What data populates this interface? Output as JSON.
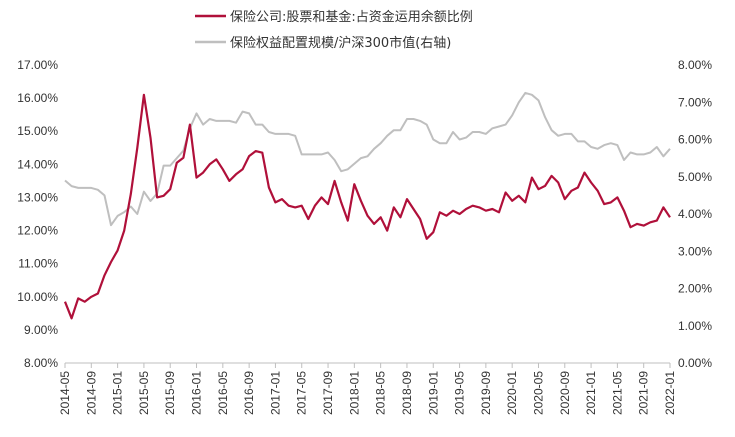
{
  "chart_data": {
    "type": "line",
    "legend": {
      "placement": "top-center",
      "entries": [
        {
          "name": "保险公司:股票和基金:占资金运用余额比例",
          "color": "#b0103a",
          "axis": "left"
        },
        {
          "name": "保险权益配置规模/沪深300市值(右轴)",
          "color": "#bfbfbf",
          "axis": "right"
        }
      ]
    },
    "y_left": {
      "min": 8,
      "max": 17,
      "ticks": [
        "8.00%",
        "9.00%",
        "10.00%",
        "11.00%",
        "12.00%",
        "13.00%",
        "14.00%",
        "15.00%",
        "16.00%",
        "17.00%"
      ]
    },
    "y_right": {
      "min": 0,
      "max": 8,
      "ticks": [
        "0.00%",
        "1.00%",
        "2.00%",
        "3.00%",
        "4.00%",
        "5.00%",
        "6.00%",
        "7.00%",
        "8.00%"
      ]
    },
    "x_ticks": [
      "2014-05",
      "2014-09",
      "2015-01",
      "2015-05",
      "2015-09",
      "2016-01",
      "2016-05",
      "2016-09",
      "2017-01",
      "2017-05",
      "2017-09",
      "2018-01",
      "2018-05",
      "2018-09",
      "2019-01",
      "2019-05",
      "2019-09",
      "2020-01",
      "2020-05",
      "2020-09",
      "2021-01",
      "2021-05",
      "2021-09",
      "2022-01"
    ],
    "grid": false,
    "series": [
      {
        "name": "保险公司:股票和基金:占资金运用余额比例",
        "color": "#b0103a",
        "axis": "left",
        "values": [
          9.85,
          9.35,
          9.95,
          9.85,
          10.0,
          10.1,
          10.65,
          11.05,
          11.4,
          12.0,
          13.1,
          14.5,
          16.1,
          14.8,
          13.0,
          13.05,
          13.25,
          14.05,
          14.2,
          15.2,
          13.6,
          13.75,
          14.0,
          14.15,
          13.85,
          13.5,
          13.7,
          13.85,
          14.25,
          14.4,
          14.35,
          13.3,
          12.85,
          12.95,
          12.75,
          12.7,
          12.75,
          12.35,
          12.75,
          13.0,
          12.8,
          13.5,
          12.85,
          12.3,
          13.4,
          12.9,
          12.45,
          12.2,
          12.4,
          12.0,
          12.7,
          12.4,
          12.95,
          12.65,
          12.35,
          11.75,
          11.95,
          12.55,
          12.45,
          12.6,
          12.5,
          12.65,
          12.75,
          12.7,
          12.6,
          12.65,
          12.55,
          13.15,
          12.9,
          13.05,
          12.85,
          13.6,
          13.25,
          13.35,
          13.65,
          13.45,
          12.95,
          13.2,
          13.3,
          13.75,
          13.45,
          13.2,
          12.8,
          12.85,
          13.0,
          12.6,
          12.1,
          12.2,
          12.15,
          12.25,
          12.3,
          12.7,
          12.4
        ]
      },
      {
        "name": "保险权益配置规模/沪深300市值(右轴)",
        "color": "#bfbfbf",
        "axis": "right",
        "values": [
          4.9,
          4.75,
          4.7,
          4.7,
          4.7,
          4.65,
          4.5,
          3.7,
          3.95,
          4.05,
          4.2,
          4.0,
          4.6,
          4.35,
          4.55,
          5.3,
          5.3,
          5.5,
          5.7,
          6.3,
          6.7,
          6.4,
          6.55,
          6.5,
          6.5,
          6.5,
          6.45,
          6.75,
          6.7,
          6.4,
          6.4,
          6.2,
          6.15,
          6.15,
          6.15,
          6.1,
          5.6,
          5.6,
          5.6,
          5.6,
          5.65,
          5.45,
          5.15,
          5.2,
          5.35,
          5.5,
          5.55,
          5.75,
          5.9,
          6.1,
          6.25,
          6.25,
          6.55,
          6.55,
          6.5,
          6.4,
          6.0,
          5.9,
          5.9,
          6.2,
          6.0,
          6.05,
          6.2,
          6.2,
          6.15,
          6.3,
          6.35,
          6.4,
          6.65,
          7.0,
          7.25,
          7.2,
          7.05,
          6.6,
          6.25,
          6.1,
          6.15,
          6.15,
          5.95,
          5.95,
          5.8,
          5.75,
          5.85,
          5.9,
          5.85,
          5.45,
          5.65,
          5.6,
          5.6,
          5.65,
          5.8,
          5.55,
          5.75
        ]
      }
    ]
  }
}
